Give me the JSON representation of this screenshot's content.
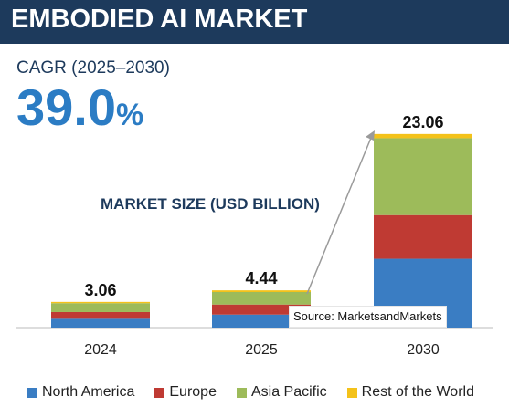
{
  "header": {
    "title": "EMBODIED AI MARKET"
  },
  "cagr": {
    "label": "CAGR (2025–2030)",
    "value": "39.0",
    "unit": "%"
  },
  "market_size_title": "MARKET SIZE (USD BILLION)",
  "source": "Source: MarketsandMarkets",
  "colors": {
    "north_america": "#3a7dc3",
    "europe": "#bf3a33",
    "asia_pacific": "#9dbb5a",
    "rest_of_world": "#f4c21a",
    "header_bg": "#1d3a5c",
    "accent": "#2b7cc4"
  },
  "chart_data": {
    "type": "bar",
    "stacked": true,
    "categories": [
      "2024",
      "2025",
      "2030"
    ],
    "totals": [
      "3.06",
      "4.44",
      "23.06"
    ],
    "series": [
      {
        "name": "North America",
        "color": "#3a7dc3",
        "values": [
          1.05,
          1.55,
          8.2
        ]
      },
      {
        "name": "Europe",
        "color": "#bf3a33",
        "values": [
          0.8,
          1.2,
          5.2
        ]
      },
      {
        "name": "Asia Pacific",
        "color": "#9dbb5a",
        "values": [
          1.06,
          1.49,
          9.16
        ]
      },
      {
        "name": "Rest of the World",
        "color": "#f4c21a",
        "values": [
          0.15,
          0.2,
          0.5
        ]
      }
    ],
    "legend_position": "bottom"
  }
}
